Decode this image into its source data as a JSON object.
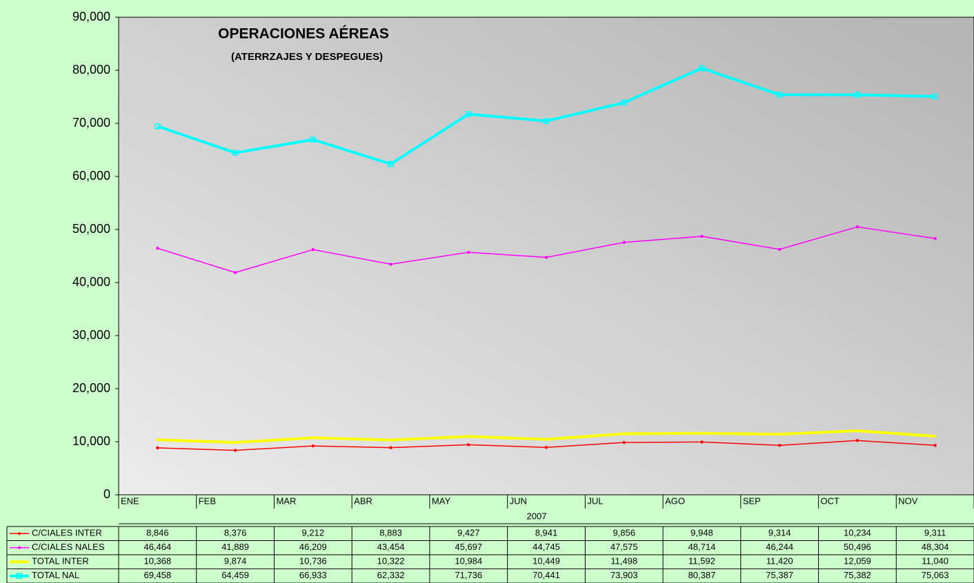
{
  "chart_data": {
    "type": "line",
    "title": "OPERACIONES AÉREAS",
    "subtitle": "(ATERRZAJES Y DESPEGUES)",
    "x_label": "2007",
    "categories": [
      "ENE",
      "FEB",
      "MAR",
      "ABR",
      "MAY",
      "JUN",
      "JUL",
      "AGO",
      "SEP",
      "OCT",
      "NOV"
    ],
    "ylim": [
      0,
      90000
    ],
    "yticks": [
      0,
      {
        "value": 10000,
        "label": "10,000"
      },
      {
        "value": 20000,
        "label": "20,000"
      },
      {
        "value": 30000,
        "label": "30,000"
      },
      {
        "value": 40000,
        "label": "40,000"
      },
      {
        "value": 50000,
        "label": "50,000"
      },
      {
        "value": 60000,
        "label": "60,000"
      },
      {
        "value": 70000,
        "label": "70,000"
      },
      {
        "value": 80000,
        "label": "80,000"
      },
      {
        "value": 90000,
        "label": "90,000"
      }
    ],
    "series": [
      {
        "name": "C/CIALES INTER",
        "color": "#ff0000",
        "values": [
          8846,
          8376,
          9212,
          8883,
          9427,
          8941,
          9856,
          9948,
          9314,
          10234,
          9311
        ],
        "value_labels": [
          "8,846",
          "8,376",
          "9,212",
          "8,883",
          "9,427",
          "8,941",
          "9,856",
          "9,948",
          "9,314",
          "10,234",
          "9,311"
        ]
      },
      {
        "name": "C/CIALES NALES",
        "color": "#ff00ff",
        "values": [
          46464,
          41889,
          46209,
          43454,
          45697,
          44745,
          47575,
          48714,
          46244,
          50496,
          48304
        ],
        "value_labels": [
          "46,464",
          "41,889",
          "46,209",
          "43,454",
          "45,697",
          "44,745",
          "47,575",
          "48,714",
          "46,244",
          "50,496",
          "48,304"
        ]
      },
      {
        "name": "TOTAL INTER",
        "color": "#ffff00",
        "values": [
          10368,
          9874,
          10736,
          10322,
          10984,
          10449,
          11498,
          11592,
          11420,
          12059,
          11040
        ],
        "value_labels": [
          "10,368",
          "9,874",
          "10,736",
          "10,322",
          "10,984",
          "10,449",
          "11,498",
          "11,592",
          "11,420",
          "12,059",
          "11,040"
        ]
      },
      {
        "name": "TOTAL NAL",
        "color": "#00ffff",
        "values": [
          69458,
          64459,
          66933,
          62332,
          71736,
          70441,
          73903,
          80387,
          75387,
          75382,
          75063
        ],
        "value_labels": [
          "69,458",
          "64,459",
          "66,933",
          "62,332",
          "71,736",
          "70,441",
          "73,903",
          "80,387",
          "75,387",
          "75,382",
          "75,063"
        ]
      }
    ]
  }
}
